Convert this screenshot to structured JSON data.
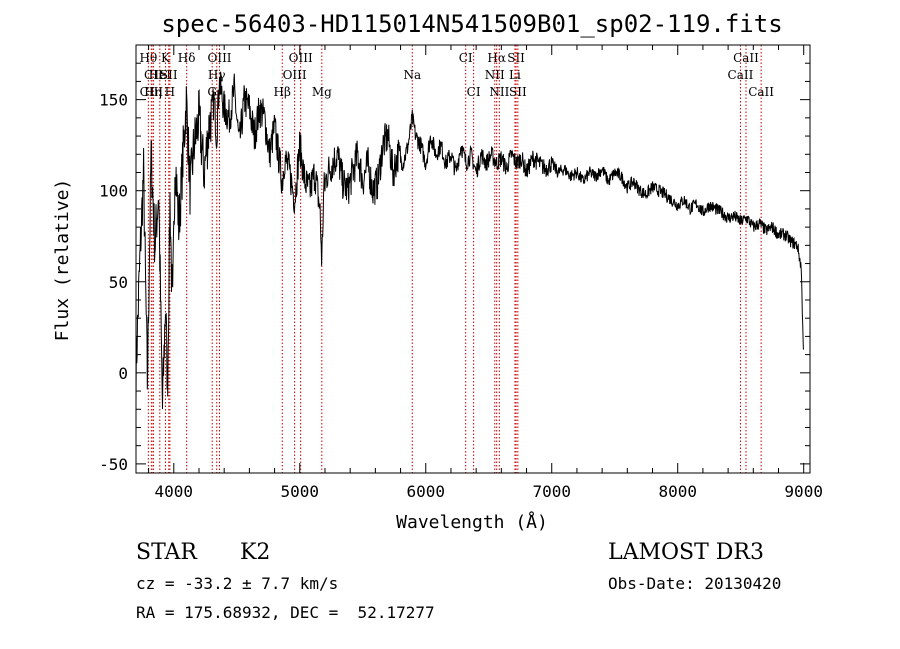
{
  "chart_data": {
    "type": "line",
    "title": "spec-56403-HD115014N541509B01_sp02-119.fits",
    "xlabel": "Wavelength (Å)",
    "ylabel": "Flux (relative)",
    "xlim": [
      3700,
      9050
    ],
    "ylim": [
      -55,
      180
    ],
    "xticks": [
      4000,
      5000,
      6000,
      7000,
      8000,
      9000
    ],
    "yticks": [
      -50,
      0,
      50,
      100,
      150
    ],
    "xminor_step": 200,
    "yminor_step": 10,
    "grid": false,
    "series": [
      {
        "name": "spectrum",
        "x": [
          3700,
          3730,
          3760,
          3790,
          3820,
          3850,
          3880,
          3910,
          3935,
          3950,
          3970,
          3990,
          4010,
          4040,
          4070,
          4100,
          4130,
          4160,
          4200,
          4240,
          4280,
          4320,
          4340,
          4360,
          4400,
          4440,
          4480,
          4520,
          4560,
          4600,
          4640,
          4680,
          4720,
          4760,
          4800,
          4840,
          4861,
          4880,
          4920,
          4960,
          5000,
          5040,
          5080,
          5120,
          5160,
          5175,
          5190,
          5220,
          5260,
          5300,
          5340,
          5380,
          5420,
          5460,
          5500,
          5540,
          5580,
          5620,
          5660,
          5700,
          5740,
          5780,
          5820,
          5860,
          5893,
          5920,
          5960,
          6000,
          6040,
          6080,
          6120,
          6160,
          6200,
          6240,
          6280,
          6320,
          6360,
          6400,
          6440,
          6480,
          6520,
          6563,
          6600,
          6640,
          6680,
          6720,
          6760,
          6800,
          6850,
          6900,
          6950,
          7000,
          7050,
          7100,
          7150,
          7200,
          7250,
          7300,
          7350,
          7400,
          7450,
          7500,
          7550,
          7600,
          7650,
          7700,
          7750,
          7800,
          7850,
          7900,
          7950,
          8000,
          8050,
          8100,
          8150,
          8200,
          8250,
          8300,
          8350,
          8400,
          8450,
          8500,
          8550,
          8600,
          8650,
          8700,
          8750,
          8800,
          8850,
          8900,
          8950,
          8980,
          9000
        ],
        "y": [
          0,
          60,
          110,
          -5,
          120,
          70,
          100,
          -20,
          40,
          -10,
          95,
          30,
          120,
          80,
          115,
          150,
          100,
          125,
          140,
          110,
          135,
          150,
          130,
          160,
          145,
          140,
          155,
          125,
          150,
          145,
          130,
          145,
          140,
          120,
          135,
          115,
          105,
          118,
          110,
          95,
          125,
          105,
          100,
          110,
          90,
          60,
          100,
          110,
          115,
          120,
          105,
          100,
          110,
          120,
          105,
          115,
          100,
          105,
          125,
          130,
          110,
          120,
          115,
          125,
          140,
          130,
          125,
          115,
          130,
          120,
          125,
          115,
          120,
          110,
          125,
          115,
          120,
          110,
          120,
          115,
          120,
          115,
          118,
          112,
          120,
          115,
          118,
          110,
          118,
          115,
          112,
          115,
          110,
          112,
          108,
          110,
          105,
          110,
          108,
          112,
          105,
          110,
          108,
          102,
          105,
          100,
          98,
          102,
          100,
          98,
          95,
          92,
          95,
          90,
          93,
          88,
          92,
          90,
          88,
          85,
          86,
          83,
          85,
          80,
          82,
          78,
          80,
          76,
          76,
          72,
          70,
          58,
          8
        ]
      }
    ],
    "lines": [
      {
        "name": "Hθ",
        "x": 3798,
        "row": 1
      },
      {
        "name": "CII",
        "x": 3838,
        "row": 2
      },
      {
        "name": "CIII",
        "x": 3822,
        "row": 3
      },
      {
        "name": "K",
        "x": 3934,
        "row": 1
      },
      {
        "name": "HeI",
        "x": 3889,
        "row": 2
      },
      {
        "name": "Hη",
        "x": 3835,
        "row": 3
      },
      {
        "name": "SII",
        "x": 3960,
        "row": 2
      },
      {
        "name": "H",
        "x": 3969,
        "row": 3
      },
      {
        "name": "Hδ",
        "x": 4102,
        "row": 1
      },
      {
        "name": "OIII",
        "x": 4363,
        "row": 1
      },
      {
        "name": "Hγ",
        "x": 4341,
        "row": 2
      },
      {
        "name": "G",
        "x": 4305,
        "row": 3
      },
      {
        "name": "OIII",
        "x": 5007,
        "row": 1
      },
      {
        "name": "OIII",
        "x": 4959,
        "row": 2
      },
      {
        "name": "Hβ",
        "x": 4861,
        "row": 3
      },
      {
        "name": "Mg",
        "x": 5175,
        "row": 3
      },
      {
        "name": "Na",
        "x": 5893,
        "row": 2
      },
      {
        "name": "CI",
        "x": 6317,
        "row": 1
      },
      {
        "name": "CI",
        "x": 6380,
        "row": 3
      },
      {
        "name": "Hα",
        "x": 6563,
        "row": 1
      },
      {
        "name": "NII",
        "x": 6548,
        "row": 2
      },
      {
        "name": "NII",
        "x": 6584,
        "row": 3
      },
      {
        "name": "SII",
        "x": 6717,
        "row": 1
      },
      {
        "name": "Li",
        "x": 6708,
        "row": 2
      },
      {
        "name": "SII",
        "x": 6731,
        "row": 3
      },
      {
        "name": "CaII",
        "x": 8542,
        "row": 1
      },
      {
        "name": "CaII",
        "x": 8498,
        "row": 2
      },
      {
        "name": "CaII",
        "x": 8662,
        "row": 3
      }
    ]
  },
  "info": {
    "object_class": "STAR",
    "subclass": "K2",
    "survey": "LAMOST DR3",
    "redshift": "cz = -33.2 ± 7.7 km/s",
    "obs_date": "Obs-Date: 20130420",
    "coords": "RA = 175.68932, DEC =  52.17277"
  },
  "colors": {
    "axes": "#000000",
    "spectrum": "#000000",
    "line_marker": "#cc0000"
  }
}
